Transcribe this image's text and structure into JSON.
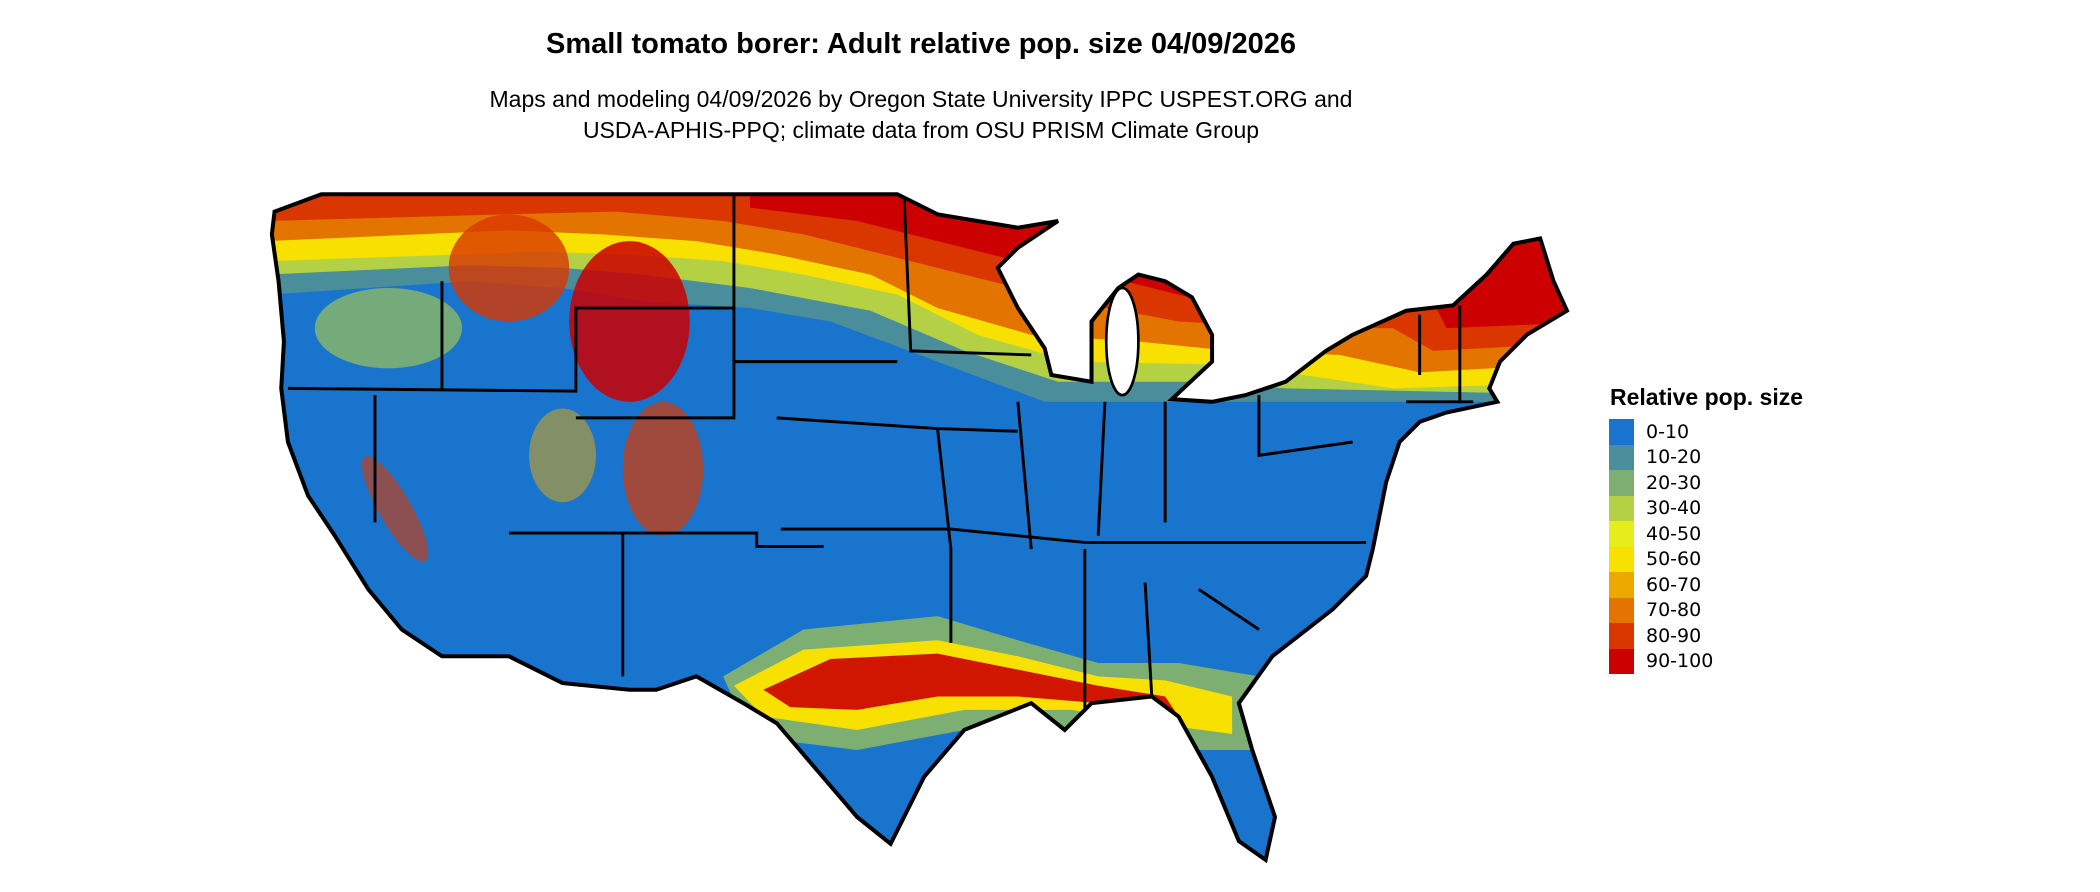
{
  "title": "Small tomato borer: Adult relative pop. size 04/09/2026",
  "subtitle_lines": [
    "Maps and modeling 04/09/2026 by Oregon State University IPPC USPEST.ORG and",
    "USDA-APHIS-PPQ; climate data from OSU PRISM Climate Group"
  ],
  "chart_data": {
    "type": "heatmap",
    "title": "Small tomato borer: Adult relative pop. size 04/09/2026",
    "legend": {
      "title": "Relative pop. size",
      "placement": "right",
      "classes": [
        {
          "label": "0-10",
          "color": "#1874CD"
        },
        {
          "label": "10-20",
          "color": "#4A8E9C"
        },
        {
          "label": "20-30",
          "color": "#7EAF72"
        },
        {
          "label": "30-40",
          "color": "#B4D145"
        },
        {
          "label": "40-50",
          "color": "#E5EE1A"
        },
        {
          "label": "50-60",
          "color": "#F8E000"
        },
        {
          "label": "60-70",
          "color": "#EEA900"
        },
        {
          "label": "70-80",
          "color": "#E37400"
        },
        {
          "label": "80-90",
          "color": "#DA3700"
        },
        {
          "label": "90-100",
          "color": "#CC0000"
        }
      ]
    }
  }
}
